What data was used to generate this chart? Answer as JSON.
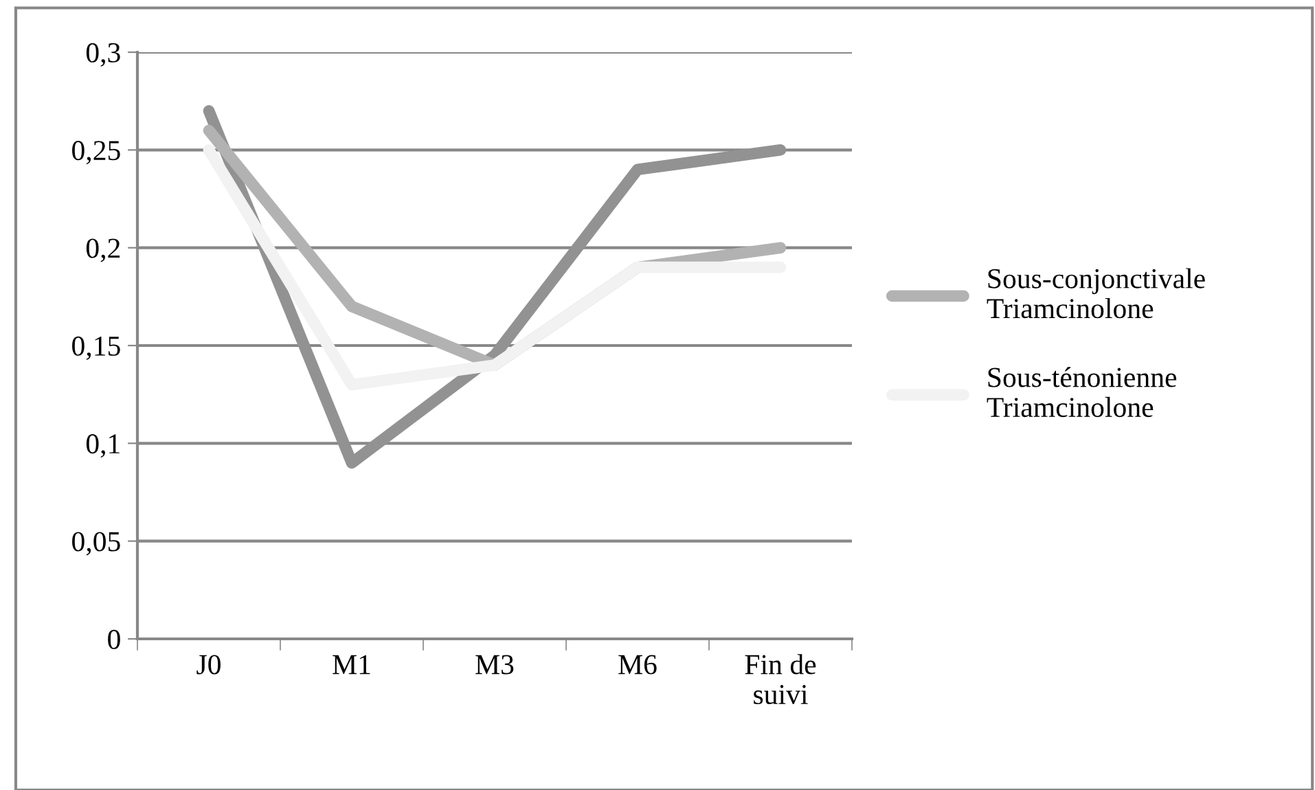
{
  "chart_data": {
    "type": "line",
    "categories": [
      "J0",
      "M1",
      "M3",
      "M6",
      "Fin de\nsuivi"
    ],
    "series": [
      {
        "color": "#929292",
        "values": [
          0.27,
          0.09,
          0.145,
          0.24,
          0.25
        ]
      },
      {
        "name": "Sous-conjonctivale\nTriamcinolone",
        "color": "#b2b2b2",
        "values": [
          0.26,
          0.17,
          0.14,
          0.19,
          0.2
        ]
      },
      {
        "name": "Sous-ténonienne\nTriamcinolone",
        "color": "#f2f2f2",
        "values": [
          0.25,
          0.13,
          0.14,
          0.19,
          0.19
        ]
      }
    ],
    "ylim": [
      0,
      0.3
    ],
    "yticks": [
      {
        "value": 0,
        "label": "0"
      },
      {
        "value": 0.05,
        "label": "0,05"
      },
      {
        "value": 0.1,
        "label": "0,1"
      },
      {
        "value": 0.15,
        "label": "0,15"
      },
      {
        "value": 0.2,
        "label": "0,2"
      },
      {
        "value": 0.25,
        "label": "0,25"
      },
      {
        "value": 0.3,
        "label": "0,3"
      }
    ],
    "grid": "y",
    "legend": "right",
    "marker": "none",
    "line_style": "solid"
  }
}
